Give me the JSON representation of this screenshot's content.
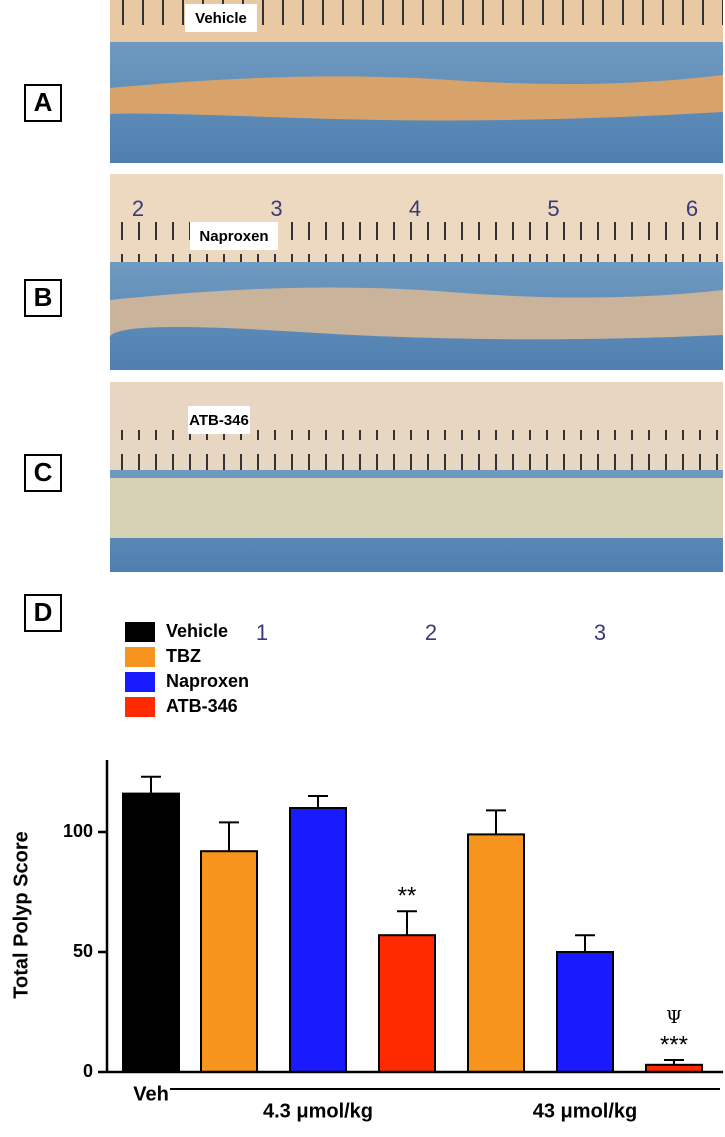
{
  "panels": [
    {
      "letter": "A",
      "label": "Vehicle"
    },
    {
      "letter": "B",
      "label": "Naproxen",
      "ruler": [
        "2",
        "3",
        "4",
        "5",
        "6"
      ]
    },
    {
      "letter": "C",
      "label": "ATB-346",
      "ruler": [
        "1",
        "2",
        "3"
      ]
    }
  ],
  "chart_data": {
    "type": "bar",
    "letter": "D",
    "ylabel": "Total Polyp Score",
    "categories": [
      "Veh",
      "4.3 μmol/kg",
      "43 μmol/kg"
    ],
    "series": [
      {
        "name": "Vehicle",
        "color": "#000000",
        "values": [
          116,
          null,
          null
        ],
        "errors": [
          7,
          null,
          null
        ]
      },
      {
        "name": "TBZ",
        "color": "#f7941d",
        "values": [
          null,
          92,
          99
        ],
        "errors": [
          null,
          12,
          10
        ]
      },
      {
        "name": "Naproxen",
        "color": "#1a1aff",
        "values": [
          null,
          110,
          50
        ],
        "errors": [
          null,
          5,
          7
        ]
      },
      {
        "name": "ATB-346",
        "color": "#ff2a00",
        "values": [
          null,
          57,
          3
        ],
        "errors": [
          null,
          10,
          2
        ],
        "significance": [
          null,
          "**",
          "***"
        ],
        "psi": [
          null,
          null,
          "Ψ"
        ]
      }
    ],
    "ylim": [
      0,
      130
    ],
    "yticks": [
      0,
      50,
      100
    ]
  }
}
